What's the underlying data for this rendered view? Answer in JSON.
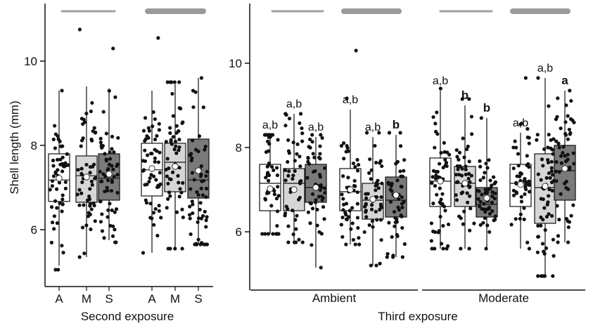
{
  "chart_data": {
    "type": "box",
    "ylabel": "Shell length (mm)",
    "ylim": [
      4.8,
      11.6
    ],
    "yticks": [
      "6",
      "8",
      "10"
    ],
    "box_colors": {
      "white": "#ffffff",
      "light": "#d6d6d6",
      "dark": "#7a7a7a"
    },
    "legend_line_colors": {
      "thin": "#a0a0a0",
      "thick": "#9a9a9a"
    },
    "panels": [
      {
        "id": "second",
        "xlabel": "Second exposure",
        "subgroups": [
          {
            "label": "",
            "boxes": [
              {
                "cat": "A",
                "color": "white",
                "q1": 6.67,
                "median": 7.18,
                "q3": 7.8,
                "wlo": 5.15,
                "whi": 9.3,
                "mean": 7.22,
                "n": 55,
                "hi": 9.3,
                "lo": 5.05,
                "letter": ""
              },
              {
                "cat": "M",
                "color": "light",
                "q1": 6.65,
                "median": 7.28,
                "q3": 7.75,
                "wlo": 5.35,
                "whi": 9.4,
                "mean": 7.25,
                "n": 55,
                "hi": 10.75,
                "lo": 5.35,
                "letter": ""
              },
              {
                "cat": "S",
                "color": "dark",
                "q1": 6.7,
                "median": 7.22,
                "q3": 7.8,
                "wlo": 5.75,
                "whi": 9.35,
                "mean": 7.32,
                "n": 60,
                "hi": 10.3,
                "lo": 5.7,
                "letter": ""
              }
            ]
          },
          {
            "label": "",
            "boxes": [
              {
                "cat": "A",
                "color": "white",
                "q1": 6.8,
                "median": 7.42,
                "q3": 8.05,
                "wlo": 5.45,
                "whi": 9.3,
                "mean": 7.45,
                "n": 55,
                "hi": 10.55,
                "lo": 5.45,
                "letter": ""
              },
              {
                "cat": "M",
                "color": "light",
                "q1": 6.9,
                "median": 7.6,
                "q3": 8.05,
                "wlo": 5.55,
                "whi": 9.45,
                "mean": 7.5,
                "n": 55,
                "hi": 9.5,
                "lo": 5.55,
                "letter": ""
              },
              {
                "cat": "S",
                "color": "dark",
                "q1": 6.75,
                "median": 7.18,
                "q3": 8.15,
                "wlo": 5.65,
                "whi": 9.6,
                "mean": 7.4,
                "n": 60,
                "hi": 9.6,
                "lo": 5.65,
                "letter": ""
              }
            ]
          }
        ]
      },
      {
        "id": "third",
        "xlabel": "Third exposure",
        "subgroups": [
          {
            "label": "Ambient",
            "boxes": [
              {
                "cat": "A",
                "color": "white",
                "q1": 6.5,
                "median": 7.15,
                "q3": 7.6,
                "wlo": 5.95,
                "whi": 8.3,
                "mean": 7.02,
                "n": 50,
                "hi": 8.3,
                "lo": 5.95,
                "letter": "a,b",
                "bold": false
              },
              {
                "cat": "M",
                "color": "light",
                "q1": 6.5,
                "median": 7.15,
                "q3": 7.5,
                "wlo": 5.75,
                "whi": 8.8,
                "mean": 7.0,
                "n": 50,
                "hi": 8.8,
                "lo": 5.75,
                "letter": "a,b",
                "bold": false
              },
              {
                "cat": "S",
                "color": "dark",
                "q1": 6.7,
                "median": 7.05,
                "q3": 7.6,
                "wlo": 5.15,
                "whi": 8.25,
                "mean": 7.05,
                "n": 50,
                "hi": 8.3,
                "lo": 5.15,
                "letter": "a,b",
                "bold": false
              },
              {
                "cat": "A",
                "color": "white",
                "q1": 6.5,
                "median": 6.95,
                "q3": 7.5,
                "wlo": 5.7,
                "whi": 8.9,
                "mean": 7.0,
                "n": 50,
                "hi": 10.3,
                "lo": 5.7,
                "letter": "a,b",
                "bold": false
              },
              {
                "cat": "M",
                "color": "light",
                "q1": 6.3,
                "median": 6.75,
                "q3": 7.15,
                "wlo": 5.2,
                "whi": 8.25,
                "mean": 6.77,
                "n": 50,
                "hi": 8.35,
                "lo": 5.2,
                "letter": "a,b",
                "bold": false
              },
              {
                "cat": "S",
                "color": "dark",
                "q1": 6.35,
                "median": 6.75,
                "q3": 7.3,
                "wlo": 5.4,
                "whi": 8.3,
                "mean": 6.87,
                "n": 50,
                "hi": 8.35,
                "lo": 5.4,
                "letter": "b",
                "bold": true
              }
            ]
          },
          {
            "label": "Moderate",
            "boxes": [
              {
                "cat": "A",
                "color": "white",
                "q1": 6.6,
                "median": 7.2,
                "q3": 7.75,
                "wlo": 5.6,
                "whi": 9.35,
                "mean": 7.2,
                "n": 55,
                "hi": 9.4,
                "lo": 5.6,
                "letter": "a,b",
                "bold": false
              },
              {
                "cat": "M",
                "color": "light",
                "q1": 6.6,
                "median": 7.15,
                "q3": 7.55,
                "wlo": 5.6,
                "whi": 9.0,
                "mean": 7.15,
                "n": 50,
                "hi": 9.15,
                "lo": 5.6,
                "letter": "b",
                "bold": true
              },
              {
                "cat": "S",
                "color": "dark",
                "q1": 6.35,
                "median": 6.65,
                "q3": 7.05,
                "wlo": 5.6,
                "whi": 8.7,
                "mean": 6.8,
                "n": 50,
                "hi": 8.7,
                "lo": 5.6,
                "letter": "b",
                "bold": true
              },
              {
                "cat": "A",
                "color": "white",
                "q1": 6.6,
                "median": 7.15,
                "q3": 7.6,
                "wlo": 5.6,
                "whi": 8.35,
                "mean": 7.12,
                "n": 50,
                "hi": 9.65,
                "lo": 5.6,
                "letter": "a,b",
                "bold": false
              },
              {
                "cat": "M",
                "color": "light",
                "q1": 6.2,
                "median": 7.05,
                "q3": 7.85,
                "wlo": 4.95,
                "whi": 9.65,
                "mean": 7.08,
                "n": 60,
                "hi": 9.65,
                "lo": 4.95,
                "letter": "a,b",
                "bold": false
              },
              {
                "cat": "S",
                "color": "dark",
                "q1": 6.75,
                "median": 7.45,
                "q3": 8.05,
                "wlo": 5.75,
                "whi": 9.35,
                "mean": 7.5,
                "n": 55,
                "hi": 9.35,
                "lo": 5.75,
                "letter": "a",
                "bold": true
              }
            ]
          }
        ]
      }
    ]
  }
}
